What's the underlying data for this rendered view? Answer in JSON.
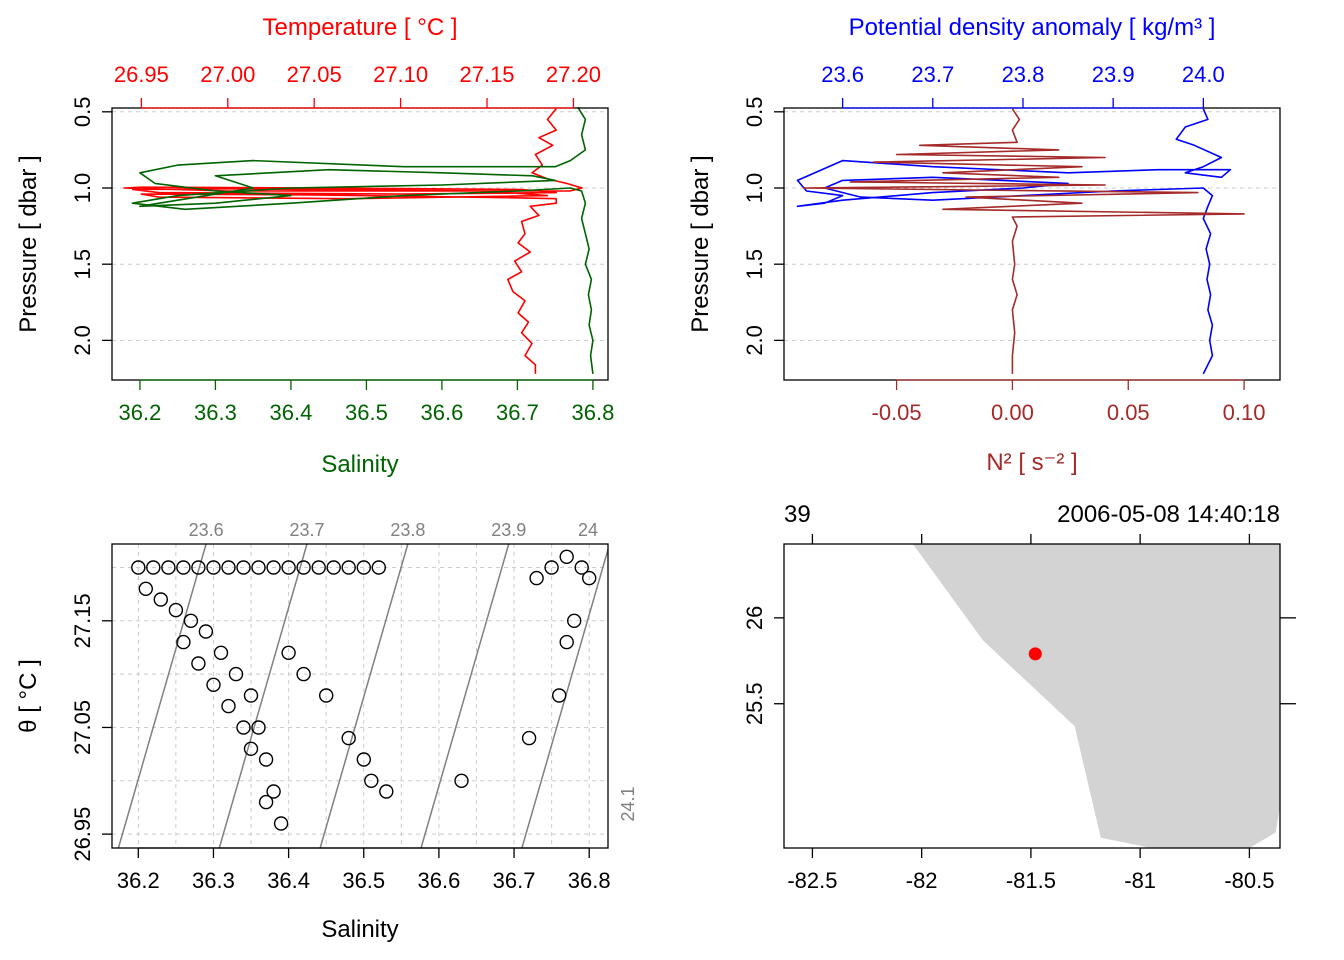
{
  "colors": {
    "temperature": "#ff0000",
    "salinity": "#006400",
    "density": "#0000ff",
    "n2": "#a52a2a",
    "isopycnal": "#808080",
    "land": "#d3d3d3",
    "station": "#ff0000",
    "grid": "#cccccc",
    "axis": "#000000"
  },
  "chart_data": [
    {
      "id": "ts-profile",
      "type": "line",
      "top_axis_title": "Temperature [ °C ]",
      "bottom_axis_title": "Salinity",
      "ylabel": "Pressure [ dbar ]",
      "top_axis_range": [
        26.933,
        27.22
      ],
      "top_ticks": [
        "26.95",
        "27.00",
        "27.05",
        "27.10",
        "27.15",
        "27.20"
      ],
      "bottom_axis_range": [
        36.163,
        36.82
      ],
      "bottom_ticks": [
        "36.2",
        "36.3",
        "36.4",
        "36.5",
        "36.6",
        "36.7",
        "36.8"
      ],
      "y_range_reversed": [
        0.475,
        2.26
      ],
      "y_ticks": [
        "0.5",
        "1.0",
        "1.5",
        "2.0"
      ],
      "series": [
        {
          "name": "Temperature",
          "axis": "top",
          "points": [
            [
              27.19,
              0.48
            ],
            [
              27.185,
              0.55
            ],
            [
              27.19,
              0.62
            ],
            [
              27.18,
              0.67
            ],
            [
              27.188,
              0.72
            ],
            [
              27.178,
              0.78
            ],
            [
              27.182,
              0.85
            ],
            [
              27.176,
              0.9
            ],
            [
              27.185,
              0.94
            ],
            [
              27.196,
              0.97
            ],
            [
              27.205,
              1.0
            ],
            [
              27.198,
              1.02
            ],
            [
              27.145,
              1.02
            ],
            [
              27.0,
              1.02
            ],
            [
              26.94,
              1.0
            ],
            [
              26.95,
              0.995
            ],
            [
              27.05,
              1.0
            ],
            [
              27.17,
              1.01
            ],
            [
              27.19,
              1.03
            ],
            [
              27.1,
              1.04
            ],
            [
              26.96,
              1.03
            ],
            [
              26.945,
              1.01
            ],
            [
              27.0,
              1.005
            ],
            [
              27.15,
              1.02
            ],
            [
              27.185,
              1.05
            ],
            [
              27.07,
              1.07
            ],
            [
              26.96,
              1.06
            ],
            [
              26.95,
              1.04
            ],
            [
              27.05,
              1.045
            ],
            [
              27.17,
              1.065
            ],
            [
              27.19,
              1.07
            ],
            [
              27.19,
              1.1
            ],
            [
              27.175,
              1.12
            ],
            [
              27.18,
              1.18
            ],
            [
              27.17,
              1.22
            ],
            [
              27.172,
              1.3
            ],
            [
              27.168,
              1.36
            ],
            [
              27.175,
              1.42
            ],
            [
              27.166,
              1.48
            ],
            [
              27.17,
              1.55
            ],
            [
              27.162,
              1.6
            ],
            [
              27.165,
              1.68
            ],
            [
              27.172,
              1.74
            ],
            [
              27.168,
              1.82
            ],
            [
              27.174,
              1.88
            ],
            [
              27.17,
              1.95
            ],
            [
              27.176,
              2.02
            ],
            [
              27.172,
              2.1
            ],
            [
              27.178,
              2.16
            ],
            [
              27.178,
              2.22
            ]
          ]
        },
        {
          "name": "Salinity",
          "axis": "bottom",
          "points": [
            [
              36.78,
              0.47
            ],
            [
              36.79,
              0.55
            ],
            [
              36.785,
              0.65
            ],
            [
              36.79,
              0.75
            ],
            [
              36.77,
              0.82
            ],
            [
              36.75,
              0.86
            ],
            [
              36.55,
              0.86
            ],
            [
              36.35,
              0.82
            ],
            [
              36.25,
              0.85
            ],
            [
              36.2,
              0.9
            ],
            [
              36.22,
              0.97
            ],
            [
              36.3,
              1.02
            ],
            [
              36.4,
              1.05
            ],
            [
              36.3,
              1.1
            ],
            [
              36.2,
              1.12
            ],
            [
              36.25,
              1.08
            ],
            [
              36.35,
              1.0
            ],
            [
              36.3,
              0.92
            ],
            [
              36.45,
              0.88
            ],
            [
              36.6,
              0.9
            ],
            [
              36.72,
              0.92
            ],
            [
              36.75,
              0.95
            ],
            [
              36.6,
              0.98
            ],
            [
              36.4,
              1.0
            ],
            [
              36.25,
              1.05
            ],
            [
              36.19,
              1.1
            ],
            [
              36.26,
              1.14
            ],
            [
              36.4,
              1.1
            ],
            [
              36.55,
              1.05
            ],
            [
              36.7,
              1.02
            ],
            [
              36.77,
              1.0
            ],
            [
              36.785,
              1.02
            ],
            [
              36.79,
              1.1
            ],
            [
              36.785,
              1.2
            ],
            [
              36.79,
              1.3
            ],
            [
              36.795,
              1.4
            ],
            [
              36.79,
              1.5
            ],
            [
              36.798,
              1.6
            ],
            [
              36.794,
              1.7
            ],
            [
              36.798,
              1.8
            ],
            [
              36.795,
              1.9
            ],
            [
              36.8,
              2.0
            ],
            [
              36.797,
              2.1
            ],
            [
              36.8,
              2.22
            ]
          ]
        }
      ]
    },
    {
      "id": "density-n2-profile",
      "type": "line",
      "top_axis_title": "Potential density anomaly [ kg/m³ ]",
      "bottom_axis_title": "N² [ s⁻² ]",
      "ylabel": "Pressure [ dbar ]",
      "top_axis_range": [
        23.535,
        24.085
      ],
      "top_ticks": [
        "23.6",
        "23.7",
        "23.8",
        "23.9",
        "24.0"
      ],
      "bottom_axis_range": [
        -0.0986,
        0.1155
      ],
      "bottom_ticks": [
        "-0.05",
        "0.00",
        "0.05",
        "0.10"
      ],
      "y_range_reversed": [
        0.475,
        2.26
      ],
      "y_ticks": [
        "0.5",
        "1.0",
        "1.5",
        "2.0"
      ],
      "series": [
        {
          "name": "Potential density anomaly",
          "axis": "top",
          "points": [
            [
              24.0,
              0.48
            ],
            [
              24.005,
              0.55
            ],
            [
              23.98,
              0.6
            ],
            [
              23.97,
              0.68
            ],
            [
              23.99,
              0.72
            ],
            [
              24.02,
              0.8
            ],
            [
              24.0,
              0.86
            ],
            [
              23.98,
              0.9
            ],
            [
              24.02,
              0.93
            ],
            [
              24.03,
              0.88
            ],
            [
              23.95,
              0.88
            ],
            [
              23.85,
              0.9
            ],
            [
              23.7,
              0.86
            ],
            [
              23.6,
              0.82
            ],
            [
              23.55,
              0.95
            ],
            [
              23.56,
              1.02
            ],
            [
              23.6,
              1.05
            ],
            [
              23.58,
              1.1
            ],
            [
              23.55,
              1.12
            ],
            [
              23.6,
              1.08
            ],
            [
              23.7,
              1.03
            ],
            [
              23.8,
              1.0
            ],
            [
              23.85,
              0.97
            ],
            [
              23.7,
              0.93
            ],
            [
              23.6,
              0.95
            ],
            [
              23.58,
              1.0
            ],
            [
              23.62,
              1.06
            ],
            [
              23.7,
              1.08
            ],
            [
              23.8,
              1.05
            ],
            [
              23.9,
              1.02
            ],
            [
              24.0,
              1.0
            ],
            [
              24.01,
              1.05
            ],
            [
              24.005,
              1.12
            ],
            [
              24.0,
              1.2
            ],
            [
              24.008,
              1.3
            ],
            [
              24.003,
              1.4
            ],
            [
              24.007,
              1.5
            ],
            [
              24.004,
              1.6
            ],
            [
              24.008,
              1.7
            ],
            [
              24.005,
              1.8
            ],
            [
              24.01,
              1.9
            ],
            [
              24.007,
              2.0
            ],
            [
              24.01,
              2.1
            ],
            [
              24.0,
              2.22
            ]
          ]
        },
        {
          "name": "N2",
          "axis": "bottom",
          "points": [
            [
              0.0,
              0.48
            ],
            [
              0.003,
              0.55
            ],
            [
              0.0,
              0.62
            ],
            [
              0.002,
              0.7
            ],
            [
              -0.04,
              0.72
            ],
            [
              0.02,
              0.75
            ],
            [
              -0.05,
              0.78
            ],
            [
              0.04,
              0.8
            ],
            [
              -0.06,
              0.83
            ],
            [
              0.03,
              0.86
            ],
            [
              -0.03,
              0.9
            ],
            [
              0.02,
              0.93
            ],
            [
              -0.07,
              0.96
            ],
            [
              0.04,
              0.98
            ],
            [
              -0.09,
              1.0
            ],
            [
              0.08,
              1.03
            ],
            [
              -0.02,
              1.06
            ],
            [
              0.03,
              1.1
            ],
            [
              -0.03,
              1.14
            ],
            [
              0.1,
              1.17
            ],
            [
              0.0,
              1.19
            ],
            [
              0.002,
              1.25
            ],
            [
              0.0,
              1.35
            ],
            [
              0.001,
              1.5
            ],
            [
              0.0,
              1.6
            ],
            [
              0.002,
              1.7
            ],
            [
              0.0,
              1.8
            ],
            [
              0.001,
              1.95
            ],
            [
              0.0,
              2.1
            ],
            [
              0.0,
              2.22
            ]
          ]
        }
      ]
    },
    {
      "id": "ts-diagram",
      "type": "scatter",
      "xlabel": "Salinity",
      "ylabel": "θ [ °C ]",
      "xlim": [
        36.165,
        36.825
      ],
      "x_ticks": [
        "36.2",
        "36.3",
        "36.4",
        "36.5",
        "36.6",
        "36.7",
        "36.8"
      ],
      "ylim": [
        26.937,
        27.222
      ],
      "y_ticks": [
        "26.95",
        "27.05",
        "27.15"
      ],
      "isopycnal_labels": [
        "23.6",
        "23.7",
        "23.8",
        "23.9",
        "24",
        "24.1"
      ],
      "points": [
        [
          36.2,
          27.2
        ],
        [
          36.22,
          27.2
        ],
        [
          36.24,
          27.2
        ],
        [
          36.26,
          27.2
        ],
        [
          36.28,
          27.2
        ],
        [
          36.3,
          27.2
        ],
        [
          36.32,
          27.2
        ],
        [
          36.34,
          27.2
        ],
        [
          36.36,
          27.2
        ],
        [
          36.38,
          27.2
        ],
        [
          36.4,
          27.2
        ],
        [
          36.42,
          27.2
        ],
        [
          36.44,
          27.2
        ],
        [
          36.46,
          27.2
        ],
        [
          36.48,
          27.2
        ],
        [
          36.5,
          27.2
        ],
        [
          36.52,
          27.2
        ],
        [
          36.21,
          27.18
        ],
        [
          36.23,
          27.17
        ],
        [
          36.25,
          27.16
        ],
        [
          36.27,
          27.15
        ],
        [
          36.29,
          27.14
        ],
        [
          36.31,
          27.12
        ],
        [
          36.33,
          27.1
        ],
        [
          36.35,
          27.08
        ],
        [
          36.36,
          27.05
        ],
        [
          36.37,
          27.02
        ],
        [
          36.38,
          26.99
        ],
        [
          36.39,
          26.96
        ],
        [
          36.26,
          27.13
        ],
        [
          36.28,
          27.11
        ],
        [
          36.3,
          27.09
        ],
        [
          36.32,
          27.07
        ],
        [
          36.34,
          27.05
        ],
        [
          36.35,
          27.03
        ],
        [
          36.37,
          26.98
        ],
        [
          36.4,
          27.12
        ],
        [
          36.42,
          27.1
        ],
        [
          36.45,
          27.08
        ],
        [
          36.48,
          27.04
        ],
        [
          36.5,
          27.02
        ],
        [
          36.51,
          27.0
        ],
        [
          36.53,
          26.99
        ],
        [
          36.63,
          27.0
        ],
        [
          36.72,
          27.04
        ],
        [
          36.76,
          27.08
        ],
        [
          36.77,
          27.13
        ],
        [
          36.78,
          27.15
        ],
        [
          36.73,
          27.19
        ],
        [
          36.75,
          27.2
        ],
        [
          36.77,
          27.21
        ],
        [
          36.79,
          27.2
        ],
        [
          36.8,
          27.19
        ]
      ]
    },
    {
      "id": "station-map",
      "type": "map",
      "top_left_label": "39",
      "top_right_label": "2006-05-08 14:40:18",
      "x_range": [
        -82.63,
        -80.36
      ],
      "x_ticks": [
        "-82.5",
        "-82",
        "-81.5",
        "-81",
        "-80.5"
      ],
      "y_range": [
        24.66,
        26.43
      ],
      "y_ticks": [
        "25.5",
        "26"
      ],
      "land_polygon": [
        [
          -82.04,
          26.43
        ],
        [
          -81.72,
          25.87
        ],
        [
          -81.3,
          25.37
        ],
        [
          -81.18,
          24.72
        ],
        [
          -80.95,
          24.66
        ],
        [
          -80.5,
          24.66
        ],
        [
          -80.38,
          24.75
        ],
        [
          -80.36,
          24.9
        ],
        [
          -80.36,
          26.43
        ]
      ],
      "station": {
        "lon": -81.48,
        "lat": 25.79
      }
    }
  ]
}
